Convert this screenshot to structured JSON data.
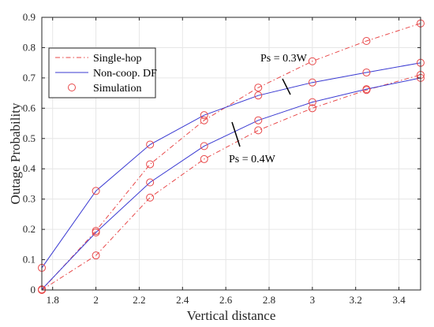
{
  "chart_data": {
    "type": "line",
    "xlabel": "Vertical distance",
    "ylabel": "Outage Probability",
    "xlim": [
      1.75,
      3.5
    ],
    "ylim": [
      0,
      0.9
    ],
    "xticks": [
      1.8,
      2,
      2.2,
      2.4,
      2.6,
      2.8,
      3,
      3.2,
      3.4
    ],
    "xtick_labels": [
      "1.8",
      "2",
      "2.2",
      "2.4",
      "2.6",
      "2.8",
      "3",
      "3.2",
      "3.4"
    ],
    "yticks": [
      0,
      0.1,
      0.2,
      0.3,
      0.4,
      0.5,
      0.6,
      0.7,
      0.8,
      0.9
    ],
    "ytick_labels": [
      "0",
      "0.1",
      "0.2",
      "0.3",
      "0.4",
      "0.5",
      "0.6",
      "0.7",
      "0.8",
      "0.9"
    ],
    "grid": true,
    "legend_position": "top-left",
    "legend": [
      {
        "label": "Single-hop",
        "style": "dash-dot",
        "color": "#e8494a"
      },
      {
        "label": "Non-coop. DF",
        "style": "solid",
        "color": "#3a3ad2"
      },
      {
        "label": "Simulation",
        "style": "circle-marker",
        "color": "#e8494a"
      }
    ],
    "annotations": [
      {
        "text": "Ps = 0.3W"
      },
      {
        "text": "Ps = 0.4W"
      }
    ],
    "series": [
      {
        "group": "Ps = 0.3W",
        "kind": "single-hop",
        "color": "#e8494a",
        "dash": "dashdot",
        "x": [
          1.75,
          2,
          2.25,
          2.5,
          2.75,
          3,
          3.25,
          3.5
        ],
        "y": [
          0.0,
          0.195,
          0.415,
          0.56,
          0.668,
          0.755,
          0.822,
          0.88
        ]
      },
      {
        "group": "Ps = 0.3W",
        "kind": "non-coop-df",
        "color": "#3a3ad2",
        "dash": "solid",
        "x": [
          1.75,
          2,
          2.25,
          2.5,
          2.75,
          3,
          3.25,
          3.5
        ],
        "y": [
          0.073,
          0.327,
          0.48,
          0.577,
          0.642,
          0.685,
          0.718,
          0.75
        ]
      },
      {
        "group": "Ps = 0.4W",
        "kind": "single-hop",
        "color": "#e8494a",
        "dash": "dashdot",
        "x": [
          1.75,
          2,
          2.25,
          2.5,
          2.75,
          3,
          3.25,
          3.5
        ],
        "y": [
          0.0,
          0.114,
          0.305,
          0.432,
          0.527,
          0.6,
          0.66,
          0.71
        ]
      },
      {
        "group": "Ps = 0.4W",
        "kind": "non-coop-df",
        "color": "#3a3ad2",
        "dash": "solid",
        "x": [
          1.75,
          2,
          2.25,
          2.5,
          2.75,
          3,
          3.25,
          3.5
        ],
        "y": [
          0.002,
          0.19,
          0.355,
          0.475,
          0.56,
          0.62,
          0.663,
          0.7
        ]
      }
    ],
    "simulation_points": {
      "color": "#e8494a",
      "x": [
        1.75,
        2,
        2.25,
        2.5,
        2.75,
        3,
        3.25,
        3.5,
        1.75,
        2,
        2.25,
        2.5,
        2.75,
        3,
        3.25,
        3.5,
        1.75,
        2,
        2.25,
        2.5,
        2.75,
        3,
        3.25,
        3.5,
        1.75,
        2,
        2.25,
        2.5,
        2.75,
        3,
        3.25,
        3.5
      ],
      "y": [
        0.0,
        0.195,
        0.415,
        0.56,
        0.668,
        0.755,
        0.822,
        0.88,
        0.073,
        0.327,
        0.48,
        0.577,
        0.642,
        0.685,
        0.718,
        0.75,
        0.0,
        0.114,
        0.305,
        0.432,
        0.527,
        0.6,
        0.66,
        0.71,
        0.002,
        0.19,
        0.355,
        0.475,
        0.56,
        0.62,
        0.663,
        0.7
      ]
    }
  }
}
